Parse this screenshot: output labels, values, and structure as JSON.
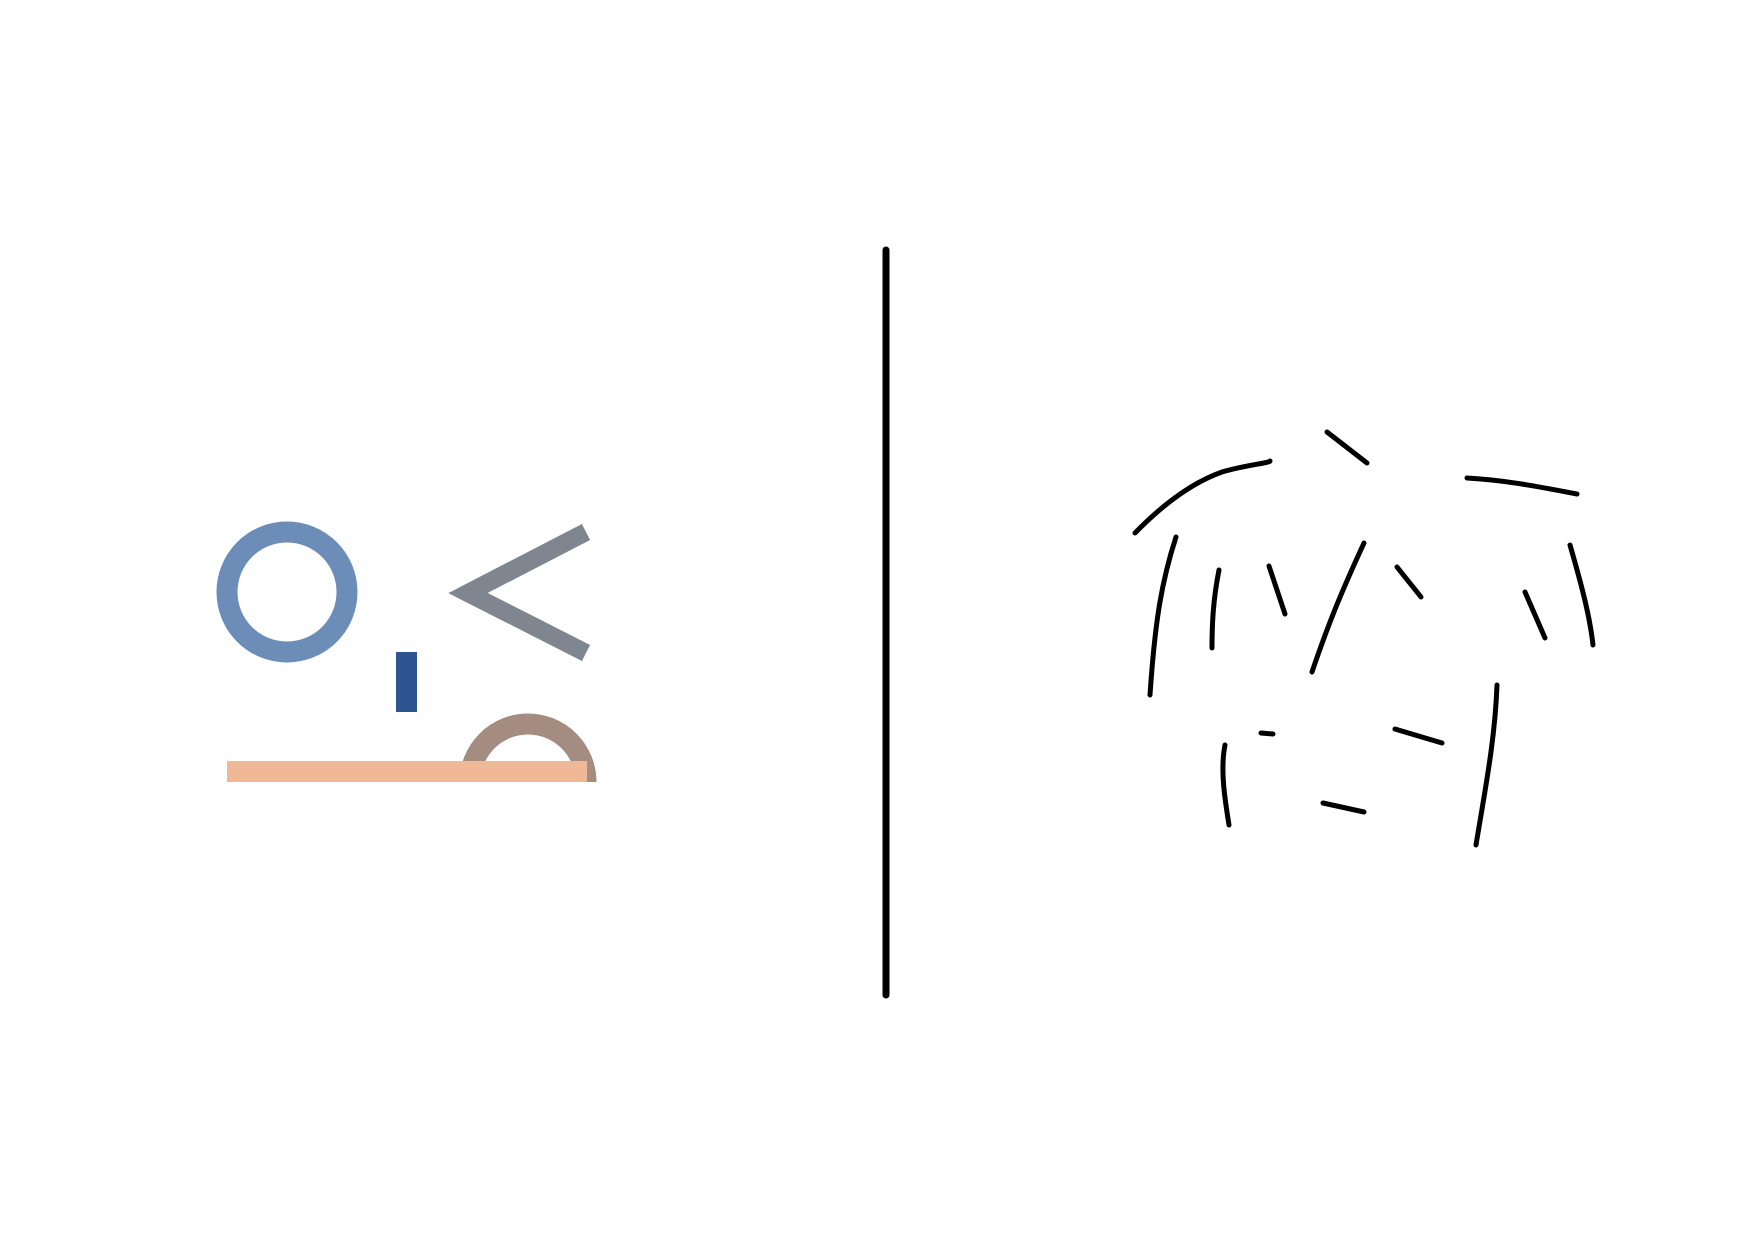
{
  "panels": {
    "left": {
      "kind": "geometric-composition",
      "shapes": [
        {
          "name": "ring",
          "color": "#6c8db7"
        },
        {
          "name": "small-bar",
          "color": "#2f5590"
        },
        {
          "name": "angle-bracket",
          "color": "#80868f"
        },
        {
          "name": "half-ring",
          "color": "#a48c80"
        },
        {
          "name": "base-bar",
          "color": "#efb896"
        }
      ]
    },
    "divider": {
      "color": "#000000"
    },
    "right": {
      "kind": "hand-drawn-strokes",
      "stroke_color": "#000000"
    }
  }
}
